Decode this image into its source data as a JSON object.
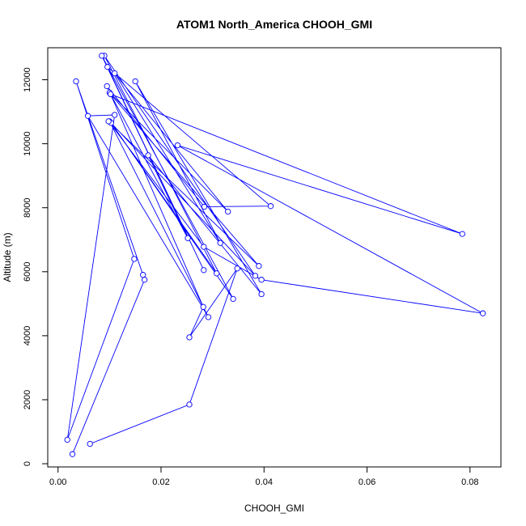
{
  "chart_data": {
    "type": "line",
    "title": "ATOM1 North_America CHOOH_GMI",
    "xlabel": "CHOOH_GMI",
    "ylabel": "Altitude (m)",
    "xlim": [
      -0.002,
      0.086
    ],
    "ylim": [
      -100,
      13000
    ],
    "x_ticks": [
      0.0,
      0.02,
      0.04,
      0.06,
      0.08
    ],
    "x_tick_labels": [
      "0.00",
      "0.02",
      "0.04",
      "0.06",
      "0.08"
    ],
    "y_ticks": [
      0,
      2000,
      4000,
      6000,
      8000,
      10000,
      12000
    ],
    "y_tick_labels": [
      "0",
      "2000",
      "4000",
      "6000",
      "8000",
      "10000",
      "12000"
    ],
    "grid": false,
    "series_color": "#0000ff",
    "series": [
      {
        "marker": "open-circle",
        "x": [
          0.0028,
          0.0168,
          0.0165,
          0.0035,
          0.0148,
          0.0018,
          0.011,
          0.0058,
          0.0292,
          0.01,
          0.0383,
          0.009,
          0.0308,
          0.0103,
          0.034,
          0.0085,
          0.0283,
          0.0096,
          0.0413,
          0.0284,
          0.0095,
          0.01,
          0.033,
          0.011,
          0.0315,
          0.015,
          0.0395,
          0.0175,
          0.0252,
          0.0102,
          0.0785,
          0.0232,
          0.0825,
          0.0395,
          0.0283,
          0.0098,
          0.039,
          0.0102,
          0.0282,
          0.0255,
          0.0348,
          0.0255,
          0.0062
        ],
        "y": [
          300,
          5750,
          5900,
          11950,
          6400,
          750,
          10900,
          10870,
          4580,
          10700,
          5870,
          12750,
          5950,
          10650,
          5150,
          12750,
          6050,
          12400,
          8050,
          8030,
          11800,
          11600,
          7880,
          12200,
          6900,
          11950,
          5300,
          9640,
          7050,
          11550,
          7180,
          9950,
          4700,
          5750,
          6780,
          10700,
          6180,
          11550,
          4900,
          3950,
          6100,
          1850,
          620
        ]
      }
    ]
  }
}
